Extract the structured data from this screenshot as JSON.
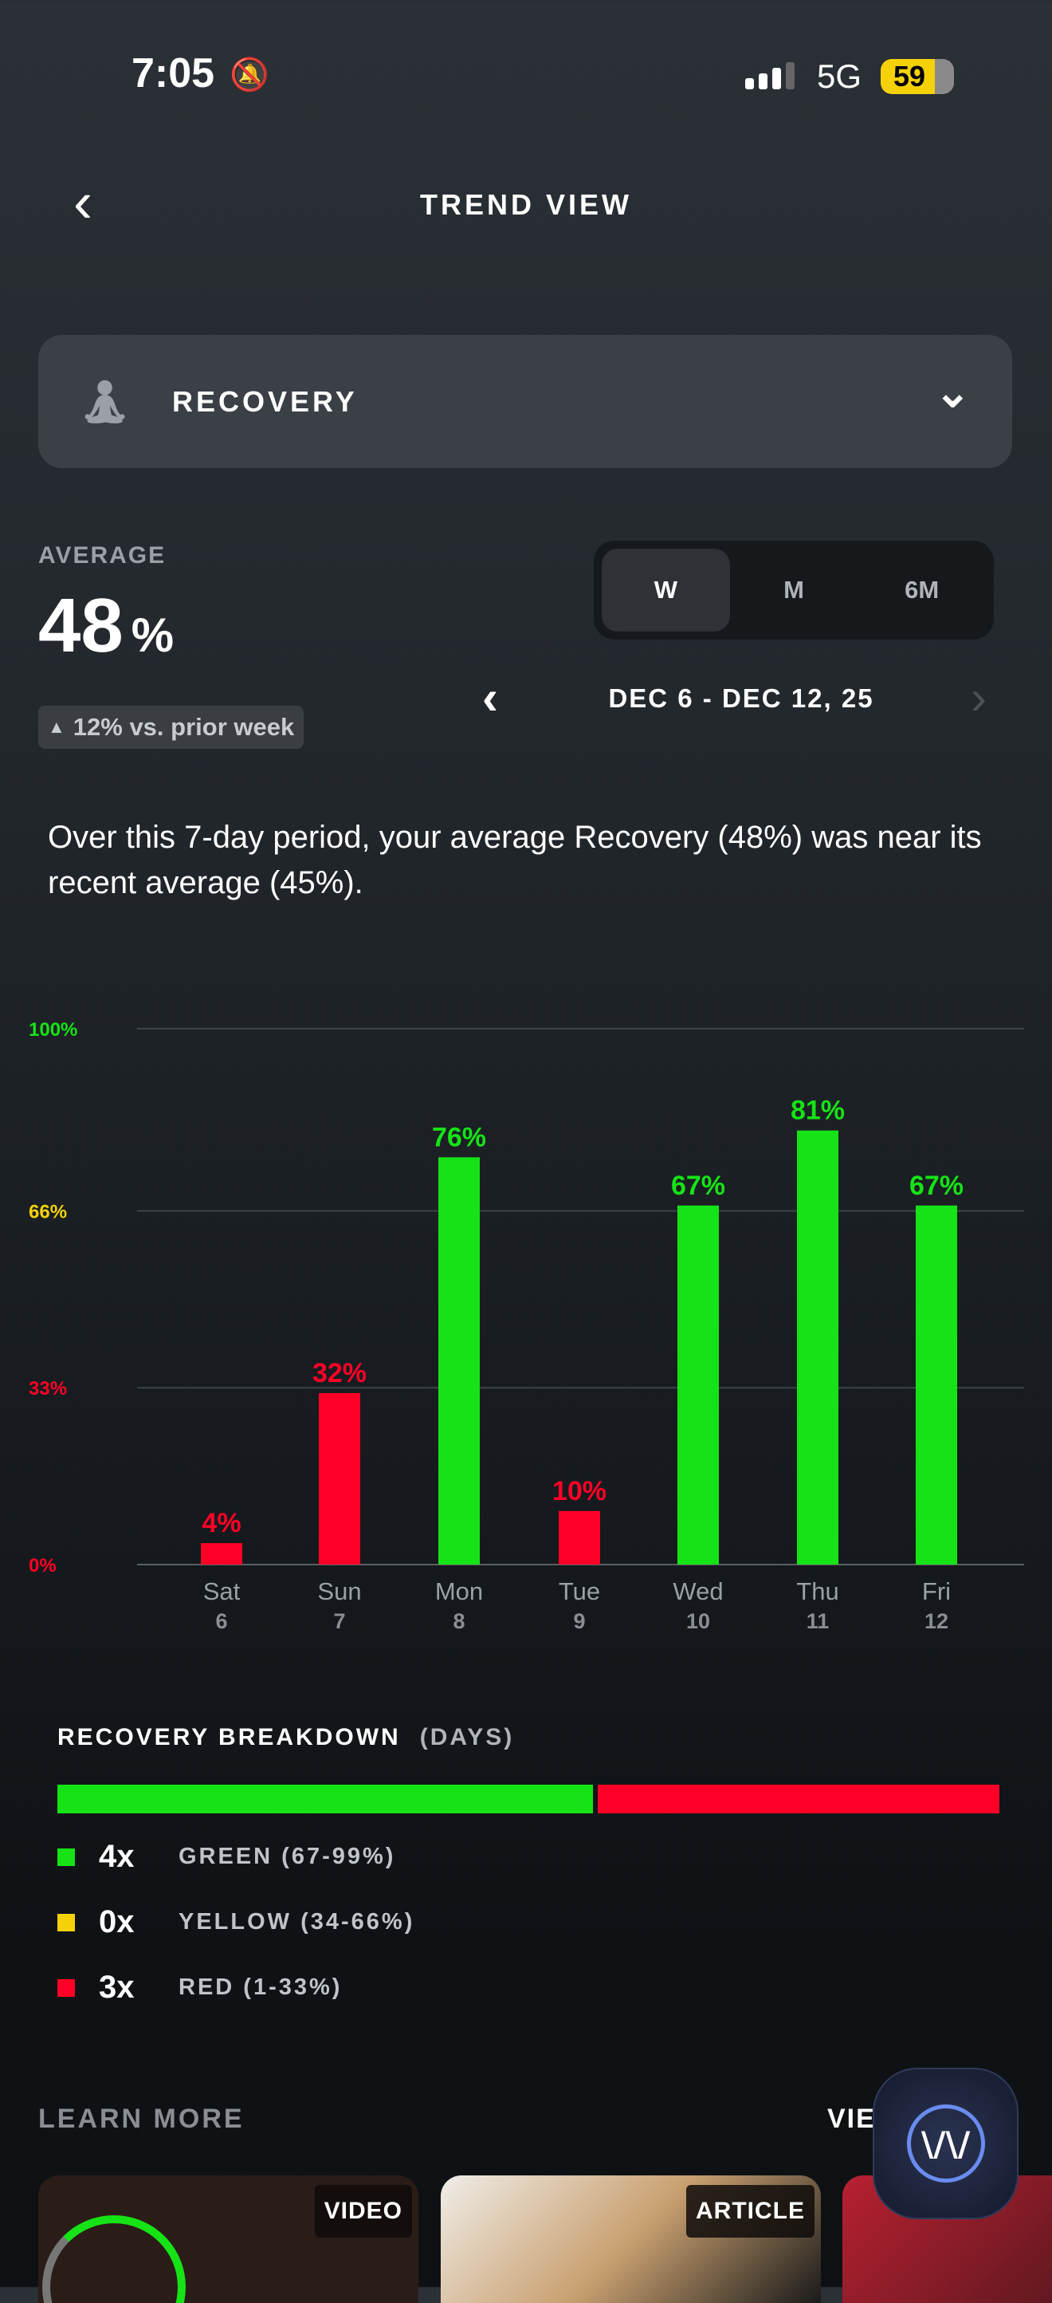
{
  "status": {
    "time": "7:05",
    "network": "5G",
    "battery": "59"
  },
  "header": {
    "title": "TREND VIEW"
  },
  "metric_selector": {
    "label": "RECOVERY"
  },
  "average": {
    "label": "AVERAGE",
    "value": "48",
    "unit": "%",
    "change": "12% vs. prior week"
  },
  "range_tabs": [
    {
      "label": "W",
      "active": true
    },
    {
      "label": "M",
      "active": false
    },
    {
      "label": "6M",
      "active": false
    }
  ],
  "date_range": "DEC 6 - DEC 12, 25",
  "summary": "Over this 7-day period, your average Recovery (48%) was near its recent average (45%).",
  "colors": {
    "green": "#16e316",
    "yellow": "#f5d10a",
    "red": "#ff0026"
  },
  "chart_data": {
    "type": "bar",
    "categories": [
      "Sat",
      "Sun",
      "Mon",
      "Tue",
      "Wed",
      "Thu",
      "Fri"
    ],
    "dates": [
      "6",
      "7",
      "8",
      "9",
      "10",
      "11",
      "12"
    ],
    "values": [
      4,
      32,
      76,
      10,
      67,
      81,
      67
    ],
    "value_labels": [
      "4%",
      "32%",
      "76%",
      "10%",
      "67%",
      "81%",
      "67%"
    ],
    "ylim": [
      0,
      100
    ],
    "yticks": [
      {
        "value": 100,
        "label": "100%",
        "color": "#16e316"
      },
      {
        "value": 66,
        "label": "66%",
        "color": "#f5d10a"
      },
      {
        "value": 33,
        "label": "33%",
        "color": "#ff0026"
      },
      {
        "value": 0,
        "label": "0%",
        "color": "#ff0026"
      }
    ],
    "grid": true
  },
  "breakdown": {
    "title": "RECOVERY BREAKDOWN",
    "unit": "(DAYS)",
    "rows": [
      {
        "count": "4x",
        "label": "GREEN (67-99%)",
        "days": 4,
        "color": "#16e316"
      },
      {
        "count": "0x",
        "label": "YELLOW (34-66%)",
        "days": 0,
        "color": "#f5d10a"
      },
      {
        "count": "3x",
        "label": "RED (1-33%)",
        "days": 3,
        "color": "#ff0026"
      }
    ]
  },
  "learn_more": {
    "title": "LEARN MORE",
    "view_all": "VIEW ALL",
    "cards": [
      {
        "tag": "VIDEO"
      },
      {
        "tag": "ARTICLE"
      },
      {
        "tag": ""
      }
    ]
  }
}
